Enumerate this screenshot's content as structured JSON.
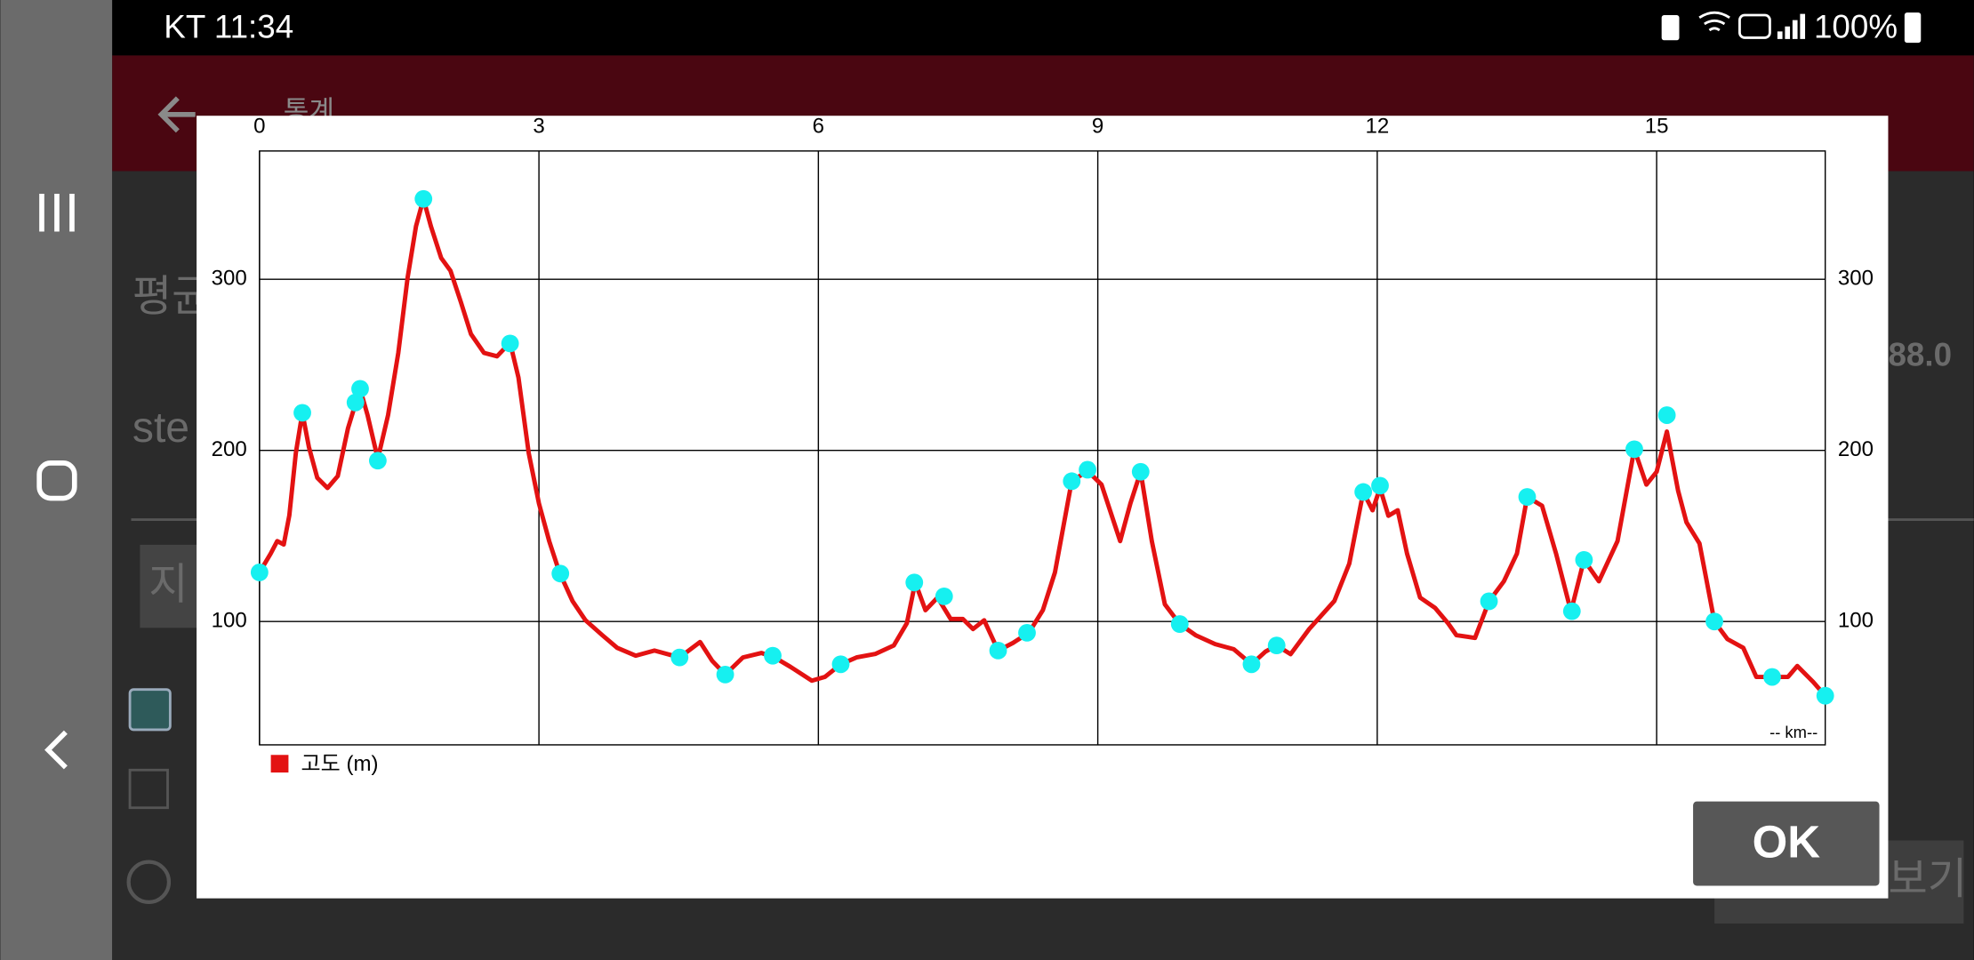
{
  "status_bar": {
    "time": "KT 11:34",
    "battery": "100%"
  },
  "background": {
    "title": "통계",
    "labels": [
      "평균",
      "ste",
      "지",
      "88.0",
      "보기"
    ]
  },
  "dialog": {
    "button": "OK"
  },
  "chart_data": {
    "type": "line",
    "x_label": "-- km--",
    "xlim": [
      0,
      16.81
    ],
    "ylim": [
      27.9,
      375
    ],
    "xticks": [
      0,
      3,
      6,
      9,
      12,
      15
    ],
    "yticks": [
      100,
      200,
      300
    ],
    "grid": true,
    "legend": "bottom-left",
    "series": [
      {
        "name": "고도 (m)",
        "color": "#e31212",
        "x": [
          0,
          0.12,
          0.19,
          0.26,
          0.32,
          0.39,
          0.46,
          0.53,
          0.62,
          0.73,
          0.84,
          0.95,
          1.04,
          1.09,
          1.16,
          1.27,
          1.38,
          1.49,
          1.59,
          1.68,
          1.76,
          1.84,
          1.95,
          2.05,
          2.16,
          2.27,
          2.41,
          2.55,
          2.69,
          2.78,
          2.89,
          3.0,
          3.11,
          3.22,
          3.36,
          3.5,
          3.68,
          3.84,
          4.04,
          4.24,
          4.51,
          4.73,
          4.86,
          5.0,
          5.19,
          5.39,
          5.53,
          5.7,
          5.93,
          6.07,
          6.24,
          6.41,
          6.61,
          6.81,
          6.95,
          7.04,
          7.15,
          7.28,
          7.42,
          7.55,
          7.66,
          7.78,
          7.93,
          8.09,
          8.26,
          8.41,
          8.54,
          8.72,
          8.89,
          9.04,
          9.24,
          9.35,
          9.46,
          9.58,
          9.72,
          9.88,
          10.05,
          10.26,
          10.46,
          10.65,
          10.8,
          10.92,
          11.07,
          11.27,
          11.54,
          11.7,
          11.85,
          11.95,
          12.03,
          12.12,
          12.22,
          12.32,
          12.46,
          12.62,
          12.76,
          12.85,
          13.05,
          13.2,
          13.36,
          13.5,
          13.61,
          13.77,
          13.92,
          14.08,
          14.22,
          14.38,
          14.58,
          14.76,
          14.89,
          15.0,
          15.11,
          15.23,
          15.32,
          15.46,
          15.62,
          15.76,
          15.93,
          16.07,
          16.24,
          16.41,
          16.51,
          16.68,
          16.81
        ],
        "values": [
          128.7,
          139.7,
          147,
          145,
          162,
          198.5,
          222,
          202,
          184,
          178,
          185,
          213,
          229,
          234,
          220.6,
          195,
          220.6,
          257,
          301,
          331,
          347,
          331,
          312.5,
          305,
          287,
          268,
          257,
          255,
          263,
          242.6,
          198.5,
          169,
          147,
          128.7,
          112,
          100.7,
          92,
          84.6,
          80,
          83,
          79,
          88,
          77,
          69,
          79,
          81.6,
          79,
          73.5,
          65.4,
          67.6,
          75,
          79,
          81,
          86,
          99,
          122.8,
          106.6,
          114,
          101.5,
          101.5,
          95.6,
          100.7,
          83,
          87.5,
          93.4,
          106.6,
          128.7,
          182,
          188,
          180,
          147,
          169,
          187.5,
          147,
          110,
          98.5,
          92,
          86.8,
          83.8,
          75,
          82.4,
          86,
          80.9,
          95.6,
          112,
          133.8,
          175.7,
          165,
          178,
          161.8,
          165,
          139.7,
          114,
          108,
          99,
          92,
          90.4,
          111.8,
          123.5,
          139.7,
          172.8,
          167.6,
          139.7,
          105.9,
          136,
          123.5,
          147,
          200.7,
          180,
          187.5,
          211,
          176.5,
          158,
          145.6,
          100,
          89.7,
          84.6,
          67.6,
          67.6,
          67.6,
          74,
          64.7,
          56.6
        ]
      },
      {
        "color": "#16f0f0",
        "x": [
          0,
          0.46,
          1.03,
          1.08,
          1.27,
          1.76,
          2.69,
          3.23,
          4.51,
          5.0,
          5.51,
          6.24,
          7.03,
          7.35,
          7.93,
          8.24,
          8.72,
          8.89,
          9.46,
          9.88,
          10.65,
          10.92,
          11.85,
          12.03,
          13.2,
          13.61,
          14.09,
          14.22,
          14.76,
          15.11,
          15.62,
          16.24,
          16.81
        ],
        "values": [
          128.7,
          222,
          228,
          236,
          194,
          347,
          262.5,
          128,
          79,
          69,
          80,
          75,
          122.8,
          114.7,
          83,
          93.4,
          182,
          188.7,
          187.5,
          98.5,
          75,
          86,
          175.7,
          179.4,
          111.8,
          172.8,
          106,
          136,
          200.7,
          220.6,
          100,
          67.6,
          56.6
        ]
      }
    ]
  }
}
